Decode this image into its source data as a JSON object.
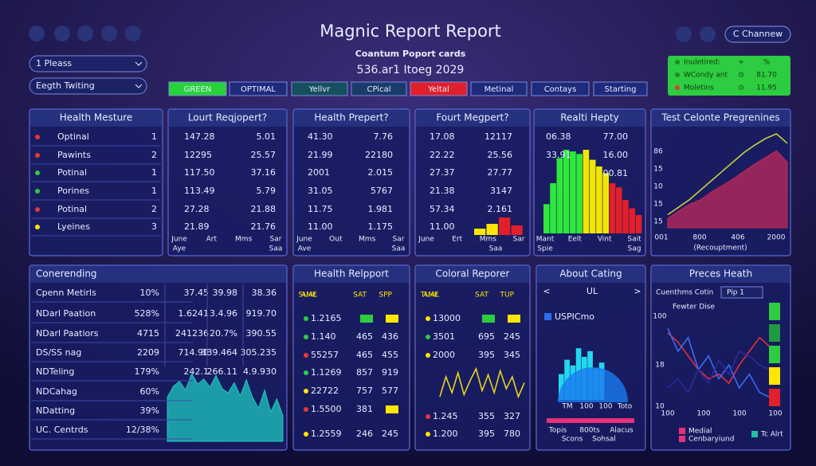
{
  "header": {
    "title": "Magnic Report Report",
    "subtitle": "Coantum Poport cards",
    "date": "536.ar1 Itoeg 2029",
    "button": "C Channew"
  },
  "dropdowns": [
    "1 Pleass",
    "Eegth Twiting"
  ],
  "tabs": [
    {
      "label": "GREEN",
      "color": "#28d23c"
    },
    {
      "label": "OPTIMAL",
      "color": "#1e2a7a"
    },
    {
      "label": "Yellvr",
      "color": "#15505e"
    },
    {
      "label": "CPical",
      "color": "#1a3c6a"
    },
    {
      "label": "Yeltal",
      "color": "#e0202a"
    },
    {
      "label": "Metinal",
      "color": "#1e2a7a"
    },
    {
      "label": "Contays",
      "color": "#1e2a7a"
    },
    {
      "label": "Starting",
      "color": "#1e2a7a"
    }
  ],
  "status": [
    [
      "Inuletired:",
      "+",
      "%"
    ],
    [
      "WCondy ant",
      "⊙",
      "81.70"
    ],
    [
      "Moletins",
      "⊙",
      "11.95"
    ]
  ],
  "panels": [
    {
      "title": "Health Mesture",
      "dots": [
        "#e53935",
        "#e53935",
        "#2ecc40",
        "#2ecc40",
        "#e53935",
        "#ffe600"
      ],
      "rows": [
        [
          "Optinal",
          "1"
        ],
        [
          "Pawints",
          "2"
        ],
        [
          "Potinal",
          "1"
        ],
        [
          "Porines",
          "1"
        ],
        [
          "Potinal",
          "2"
        ],
        [
          "Lyeines",
          "3"
        ]
      ]
    },
    {
      "title": "Lourt Reqjopert?",
      "rows": [
        [
          "147.28",
          "5.01"
        ],
        [
          "12295",
          "25.57"
        ],
        [
          "117.50",
          "37.16"
        ],
        [
          "113.49",
          "5.79"
        ],
        [
          "27.28",
          "21.88"
        ],
        [
          "21.89",
          "21.76"
        ]
      ],
      "footer": [
        [
          "June",
          "Art",
          "Mms",
          "Sar"
        ],
        [
          "Aye",
          "Saa"
        ]
      ]
    },
    {
      "title": "Health Prepert?",
      "rows": [
        [
          "41.30",
          "7.76"
        ],
        [
          "21.99",
          "22180"
        ],
        [
          "2001",
          "2.015"
        ],
        [
          "31.05",
          "5767"
        ],
        [
          "11.75",
          "1.981"
        ],
        [
          "11.00",
          "1.175"
        ]
      ],
      "footer": [
        [
          "June",
          "Out",
          "Mms",
          "Sar"
        ],
        [
          "Ave",
          "Saa"
        ]
      ]
    },
    {
      "title": "Fourt Megpert?",
      "rows": [
        [
          "17.08",
          "12117"
        ],
        [
          "22.22",
          "25.56"
        ],
        [
          "27.37",
          "27.77"
        ],
        [
          "21.38",
          "3147"
        ],
        [
          "57.34",
          "2.161"
        ],
        [
          "11.00"
        ]
      ],
      "footer": [
        [
          "June",
          "Ert",
          "Mms",
          "Sar"
        ],
        [
          "Saa"
        ]
      ],
      "chart": {
        "type": "bar",
        "ylim": [
          0,
          100
        ],
        "values": [
          20,
          35,
          55,
          30
        ],
        "colors": [
          "#ffe600",
          "#ffe600",
          "#e0202a",
          "#e0202a"
        ]
      }
    },
    {
      "title": "Realti Hepty",
      "rows": [
        [
          "06.38",
          "77.00"
        ],
        [
          "33.91",
          "16.00"
        ]
      ],
      "note": "00.81",
      "footer": [
        [
          "Mant",
          "Eelt",
          "Vint",
          "Sait"
        ],
        [
          "Spie",
          "Sag"
        ]
      ],
      "chart": {
        "type": "bar",
        "ylim": [
          0,
          100
        ],
        "values": [
          35,
          60,
          90,
          100,
          98,
          95,
          100,
          88,
          80,
          72,
          60,
          55,
          40,
          30,
          22
        ],
        "colors": [
          "#2ee83c",
          "#2ee83c",
          "#2ee83c",
          "#2ee83c",
          "#2ee83c",
          "#2ee83c",
          "#f2e600",
          "#f2e600",
          "#f2e600",
          "#f2e600",
          "#e0202a",
          "#e0202a",
          "#e0202a",
          "#e0202a",
          "#e0202a"
        ]
      }
    },
    {
      "title": "Test Celonte Pregrenines",
      "ylabels": [
        "86",
        "15",
        "10",
        "15",
        "15"
      ],
      "xlabels": [
        "001",
        "800",
        "406",
        "2000"
      ],
      "caption": "(Recouptment)",
      "chart": {
        "type": "area",
        "ylim": [
          0,
          100
        ],
        "series": [
          {
            "color": "#c0285a",
            "fill": true,
            "values": [
              10,
              18,
              25,
              30,
              38,
              45,
              52,
              60,
              68,
              75,
              82,
              70
            ]
          },
          {
            "color": "#c8d23c",
            "fill": false,
            "values": [
              14,
              22,
              30,
              40,
              50,
              60,
              70,
              80,
              88,
              95,
              100,
              90
            ]
          }
        ]
      }
    },
    {
      "title": "Conerending",
      "rows": [
        [
          "Cpenn Metirls",
          "10%",
          "37.45",
          "39.98",
          "38.36"
        ],
        [
          "NDarl Paation",
          "528%",
          "1.6241",
          "3.4.96",
          "919.70"
        ],
        [
          "NDarl Paatiors",
          "4715",
          "241236",
          "20.7%",
          "390.55"
        ],
        [
          "DS/SS nag",
          "2209",
          "714.90",
          "339.464",
          "305.235"
        ],
        [
          "NDTeling",
          "179%",
          "242.1",
          "266.11",
          "4.9.930"
        ],
        [
          "NDCahag",
          "60%"
        ],
        [
          "NDatting",
          "39%"
        ],
        [
          "UC. Centrds",
          "12/38%"
        ]
      ],
      "chart": {
        "type": "area",
        "ylim": [
          0,
          100
        ],
        "series": [
          {
            "color": "#1fc8c0",
            "fill": true,
            "values": [
              60,
              75,
              82,
              70,
              92,
              78,
              85,
              74,
              90,
              72,
              66,
              80,
              62,
              84,
              60,
              45,
              70,
              40,
              58,
              35
            ]
          }
        ]
      }
    },
    {
      "title": "Health Relpport",
      "head": [
        "AME",
        "SUAL",
        "SAT",
        "SPP"
      ],
      "dots": [
        "#2ecc40",
        "#2ecc40",
        "#e53935",
        "#2ecc40",
        "#ffe600",
        "#e53935",
        "#ffe600"
      ],
      "rows": [
        [
          "1.2165",
          {
            "color": "#2ecc40"
          },
          {
            "color": "#ffe600"
          }
        ],
        [
          "1.140",
          "465",
          "436"
        ],
        [
          "55257",
          "465",
          "455"
        ],
        [
          "1.1269",
          "857",
          "919"
        ],
        [
          "22722",
          "757",
          "577"
        ],
        [
          "1.5500",
          "381",
          {
            "color": "#ffe600"
          }
        ],
        [
          "1.2559",
          "246",
          "245"
        ]
      ]
    },
    {
      "title": "Coloral Reporer",
      "head": [
        "AME",
        "TUAL",
        "SAT",
        "TUP"
      ],
      "dots": [
        "#ffe600",
        "#2ecc40",
        "#ffe600",
        "#e53935",
        "#ffe600"
      ],
      "rows": [
        [
          "13000",
          {
            "color": "#2ecc40"
          },
          {
            "color": "#ffe600"
          }
        ],
        [
          "3501",
          "695",
          "245"
        ],
        [
          "2000",
          "395",
          "345"
        ],
        [
          "1.245",
          "355",
          "327"
        ],
        [
          "1.200",
          "395",
          "780"
        ]
      ],
      "chart": {
        "type": "line",
        "ylim": [
          0,
          100
        ],
        "series": [
          {
            "color": "#e6d21e",
            "fill": false,
            "values": [
              20,
              70,
              30,
              80,
              25,
              60,
              90,
              35,
              75,
              30,
              85,
              40,
              70,
              20,
              55
            ]
          }
        ]
      }
    },
    {
      "title": "About Cating",
      "nav": [
        "<",
        "UL",
        ">"
      ],
      "legend": "USPICmo",
      "labels": [
        "TM",
        "100",
        "100",
        "Toto"
      ],
      "footer": [
        [
          "Topis",
          "800ts",
          "Alacus"
        ],
        [
          "Scons",
          "Sohsal"
        ]
      ],
      "chart": {
        "type": "bar",
        "ylim": [
          0,
          100
        ],
        "values": [
          45,
          70,
          60,
          90,
          75,
          85,
          55,
          65
        ],
        "colors": [
          "#22d8f0",
          "#22d8f0",
          "#22d8f0",
          "#22d8f0",
          "#22d8f0",
          "#22d8f0",
          "#22d8f0",
          "#22d8f0"
        ]
      }
    },
    {
      "title": "Preces Heath",
      "filter": "Cuenthms Cotin",
      "dropdown": "Pip 1",
      "axis": "Fewter Dise",
      "ylabels": [
        "100",
        "18",
        "10"
      ],
      "xlabels": [
        "100",
        "100",
        "100",
        "100"
      ],
      "legend": [
        "Medial",
        "Cenbaryiund",
        "Tc Alrt"
      ],
      "chart": {
        "type": "line",
        "ylim": [
          0,
          100
        ],
        "series": [
          {
            "color": "#e0303a",
            "fill": false,
            "values": [
              80,
              70,
              55,
              40,
              30,
              35,
              25,
              45,
              60,
              75,
              65
            ]
          },
          {
            "color": "#3a6af0",
            "fill": false,
            "values": [
              85,
              60,
              75,
              40,
              55,
              30,
              45,
              20,
              35,
              15,
              10
            ]
          },
          {
            "color": "#2a2aa0",
            "fill": false,
            "values": [
              20,
              30,
              15,
              40,
              25,
              50,
              35,
              60,
              55,
              45,
              40
            ]
          }
        ]
      }
    }
  ]
}
